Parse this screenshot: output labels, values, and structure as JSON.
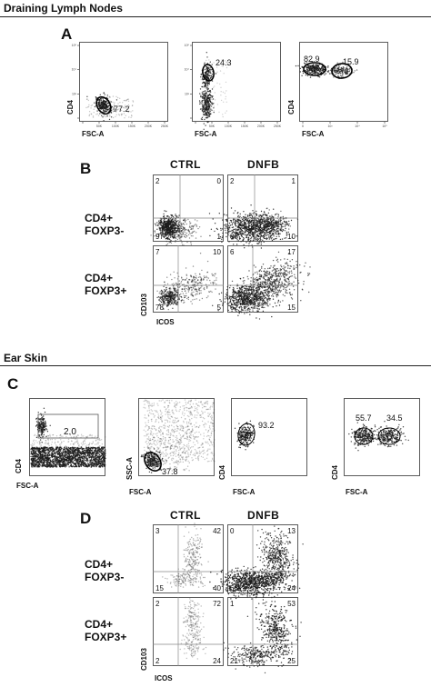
{
  "section1": {
    "title": "Draining Lymph Nodes",
    "panelA": {
      "letter": "A",
      "plots": [
        {
          "xlabel": "FSC-A",
          "ylabel": "CD4",
          "gate_values": [
            "77.2"
          ],
          "xticks": [
            "",
            "50K",
            "100K",
            "150K",
            "200K",
            "250K"
          ],
          "yticks": [
            "",
            "10³",
            "10⁴",
            "10⁵"
          ]
        },
        {
          "xlabel": "FSC-A",
          "ylabel": "",
          "gate_values": [
            "24.3"
          ],
          "xticks": [
            "",
            "50K",
            "100K",
            "150K",
            "200K",
            "250K"
          ],
          "yticks": [
            "",
            "10³",
            "10⁴",
            "10⁵"
          ]
        },
        {
          "xlabel": "FSC-A",
          "ylabel": "CD4",
          "gate_values": [
            "82.9",
            "15.9"
          ],
          "xticks": [
            "0",
            "10³",
            "10⁴",
            "10⁵"
          ],
          "yticks": []
        }
      ]
    },
    "panelB": {
      "letter": "B",
      "col_headers": [
        "CTRL",
        "DNFB"
      ],
      "row_labels": [
        [
          "CD4+",
          "FOXP3-"
        ],
        [
          "CD4+",
          "FOXP3+"
        ]
      ],
      "xlabel": "ICOS",
      "ylabel": "CD103",
      "quadrants": [
        [
          [
            "2",
            "0",
            "97",
            "1"
          ],
          [
            "2",
            "1",
            "88",
            "10"
          ]
        ],
        [
          [
            "7",
            "10",
            "78",
            "5"
          ],
          [
            "6",
            "17",
            "62",
            "15"
          ]
        ]
      ]
    }
  },
  "section2": {
    "title": "Ear Skin",
    "panelC": {
      "letter": "C",
      "plots": [
        {
          "xlabel": "FSC-A",
          "ylabel": "CD4",
          "gate_values": [
            "2.0"
          ]
        },
        {
          "xlabel": "FSC-A",
          "ylabel": "SSC-A",
          "gate_values": [
            "37.8"
          ]
        },
        {
          "xlabel": "FSC-A",
          "ylabel": "CD4",
          "gate_values": [
            "93.2"
          ]
        },
        {
          "xlabel": "FSC-A",
          "ylabel": "CD4",
          "gate_values": [
            "55.7",
            "34.5"
          ]
        }
      ]
    },
    "panelD": {
      "letter": "D",
      "col_headers": [
        "CTRL",
        "DNFB"
      ],
      "row_labels": [
        [
          "CD4+",
          "FOXP3-"
        ],
        [
          "CD4+",
          "FOXP3+"
        ]
      ],
      "xlabel": "ICOS",
      "ylabel": "CD103",
      "quadrants": [
        [
          [
            "3",
            "42",
            "15",
            "40"
          ],
          [
            "0",
            "13",
            "63",
            "24"
          ]
        ],
        [
          [
            "2",
            "72",
            "2",
            "24"
          ],
          [
            "1",
            "53",
            "21",
            "25"
          ]
        ]
      ]
    }
  },
  "colors": {
    "dots": "#1a1a1a",
    "frame": "#333333",
    "gridline": "#888888"
  }
}
